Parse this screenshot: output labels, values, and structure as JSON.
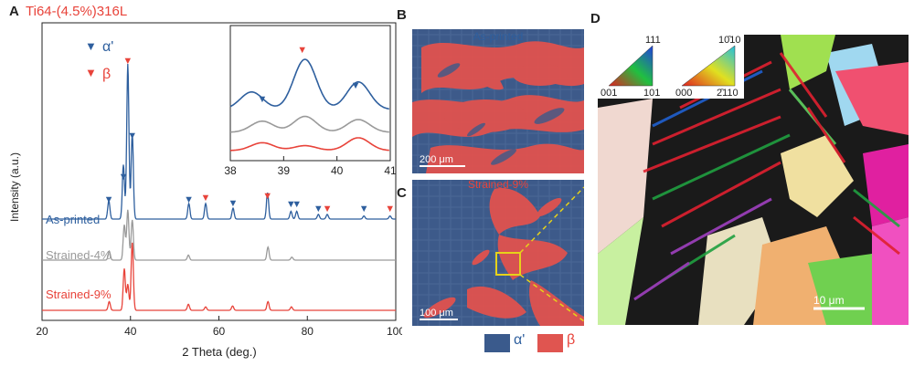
{
  "figure": {
    "panel_a": {
      "letter": "A",
      "title": "Ti64-(4.5%)316L",
      "ylabel": "Intensity (a.u.)",
      "xlabel": "2 Theta (deg.)",
      "legend": [
        {
          "symbol": "▼",
          "label": "α'",
          "color": "#2e5f9e"
        },
        {
          "symbol": "▼",
          "label": "β",
          "color": "#e8433a"
        }
      ],
      "curve_labels": [
        "As-printed",
        "Strained-4%",
        "Strained-9%"
      ]
    },
    "panel_b": {
      "letter": "B",
      "label": "As-printed",
      "scalebar": "200 μm"
    },
    "panel_c": {
      "letter": "C",
      "label": "Strained-9%",
      "scalebar": "100 μm"
    },
    "panel_d": {
      "letter": "D",
      "key1": {
        "top": "111",
        "left": "001",
        "right": "101"
      },
      "key2": {
        "top": "10̄10",
        "left": "000",
        "right": "2̄110"
      },
      "scalebar": "10 μm"
    },
    "phase_legend": [
      {
        "label": "α'",
        "color": "#3a5a8c"
      },
      {
        "label": "β",
        "color": "#e05550"
      }
    ]
  },
  "chart_data": {
    "type": "line",
    "xlabel": "2 Theta (deg.)",
    "ylabel": "Intensity (a.u.)",
    "xlim": [
      20,
      100
    ],
    "xticks": [
      20,
      40,
      60,
      80,
      100
    ],
    "series": [
      {
        "name": "As-printed",
        "color": "#2e5f9e",
        "peaks": [
          [
            35.1,
            0.12
          ],
          [
            38.4,
            0.35
          ],
          [
            39.4,
            1.0
          ],
          [
            40.4,
            0.55
          ],
          [
            53.2,
            0.1
          ],
          [
            57.0,
            0.1
          ],
          [
            63.2,
            0.07
          ],
          [
            71.0,
            0.17
          ],
          [
            76.3,
            0.05
          ],
          [
            77.6,
            0.05
          ],
          [
            82.5,
            0.03
          ],
          [
            84.5,
            0.03
          ],
          [
            92.8,
            0.02
          ],
          [
            98.7,
            0.02
          ]
        ]
      },
      {
        "name": "Strained-4%",
        "color": "#9a9a9a",
        "peaks": [
          [
            35.2,
            0.09
          ],
          [
            38.6,
            0.35
          ],
          [
            39.4,
            0.5
          ],
          [
            40.4,
            0.4
          ],
          [
            53.1,
            0.05
          ],
          [
            71.1,
            0.13
          ],
          [
            76.5,
            0.03
          ]
        ]
      },
      {
        "name": "Strained-9%",
        "color": "#e8433a",
        "peaks": [
          [
            35.2,
            0.1
          ],
          [
            38.6,
            0.48
          ],
          [
            39.4,
            0.3
          ],
          [
            40.4,
            0.78
          ],
          [
            53.1,
            0.07
          ],
          [
            57.0,
            0.04
          ],
          [
            63.1,
            0.05
          ],
          [
            71.1,
            0.1
          ],
          [
            76.4,
            0.04
          ]
        ]
      }
    ],
    "annotations": {
      "alpha_markers": [
        35.1,
        38.4,
        40.4,
        53.2,
        63.2,
        76.3,
        77.6,
        82.5,
        92.8
      ],
      "beta_markers": [
        39.4,
        57.0,
        71.0,
        84.5,
        98.7
      ]
    },
    "inset": {
      "xlim": [
        38,
        41
      ],
      "xticks": [
        38,
        39,
        40,
        41
      ],
      "alpha_markers": [
        38.6,
        40.35
      ],
      "beta_markers": [
        39.35
      ]
    }
  }
}
